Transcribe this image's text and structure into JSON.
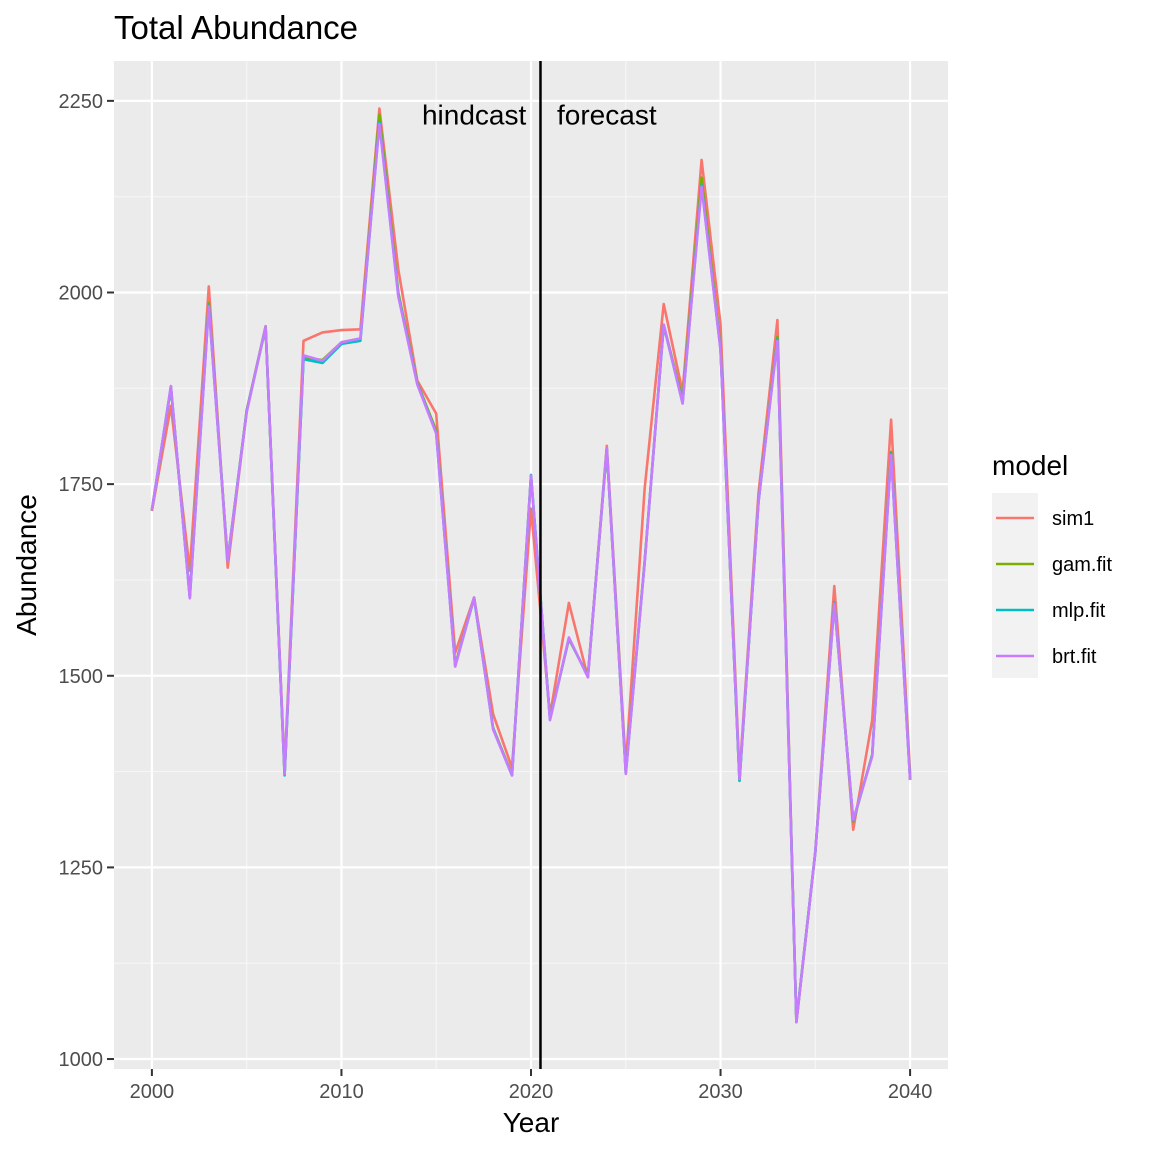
{
  "chart_data": {
    "type": "line",
    "title": "Total Abundance",
    "xlabel": "Year",
    "ylabel": "Abundance",
    "xlim": [
      1998,
      2042
    ],
    "ylim": [
      987,
      2302
    ],
    "x_ticks": [
      2000,
      2010,
      2020,
      2030,
      2040
    ],
    "y_ticks": [
      1000,
      1250,
      1500,
      1750,
      2000,
      2250
    ],
    "vline_x": 2020.5,
    "annotations": [
      {
        "text": "hindcast",
        "x": 2017,
        "y": 2232
      },
      {
        "text": "forecast",
        "x": 2024,
        "y": 2232
      }
    ],
    "grid": true,
    "legend": {
      "title": "model",
      "position": "right"
    },
    "x": [
      2000,
      2001,
      2002,
      2003,
      2004,
      2005,
      2006,
      2007,
      2008,
      2009,
      2010,
      2011,
      2012,
      2013,
      2014,
      2015,
      2016,
      2017,
      2018,
      2019,
      2020,
      2021,
      2022,
      2023,
      2024,
      2025,
      2026,
      2027,
      2028,
      2029,
      2030,
      2031,
      2032,
      2033,
      2034,
      2035,
      2036,
      2037,
      2038,
      2039,
      2040
    ],
    "series": [
      {
        "name": "sim1",
        "color": "#F8766D",
        "values": [
          1715,
          1852,
          1637,
          2008,
          1641,
          1846,
          1956,
          1377,
          1937,
          1948,
          1951,
          1952,
          2240,
          2030,
          1885,
          1842,
          1530,
          1602,
          1450,
          1380,
          1718,
          1448,
          1595,
          1498,
          1800,
          1383,
          1745,
          1985,
          1870,
          2173,
          1959,
          1370,
          1738,
          1964,
          1048,
          1270,
          1617,
          1299,
          1442,
          1834,
          1372
        ]
      },
      {
        "name": "gam.fit",
        "color": "#7CAE00",
        "values": [
          1716,
          1876,
          1604,
          1986,
          1651,
          1846,
          1954,
          1371,
          1915,
          1912,
          1935,
          1940,
          2232,
          2000,
          1882,
          1820,
          1514,
          1602,
          1432,
          1371,
          1760,
          1444,
          1548,
          1500,
          1795,
          1374,
          1650,
          1958,
          1860,
          2150,
          1928,
          1363,
          1728,
          1942,
          1050,
          1270,
          1596,
          1310,
          1397,
          1792,
          1366
        ]
      },
      {
        "name": "mlp.fit",
        "color": "#00BFC4",
        "values": [
          1716,
          1877,
          1602,
          1983,
          1650,
          1845,
          1955,
          1370,
          1913,
          1908,
          1933,
          1937,
          2222,
          1997,
          1881,
          1817,
          1513,
          1601,
          1431,
          1370,
          1762,
          1443,
          1549,
          1499,
          1796,
          1373,
          1649,
          1957,
          1856,
          2140,
          1926,
          1363,
          1727,
          1939,
          1049,
          1270,
          1595,
          1311,
          1396,
          1790,
          1364
        ]
      },
      {
        "name": "brt.fit",
        "color": "#C77CFF",
        "values": [
          1716,
          1878,
          1601,
          1982,
          1650,
          1844,
          1955,
          1372,
          1918,
          1911,
          1935,
          1940,
          2220,
          1995,
          1880,
          1816,
          1512,
          1602,
          1430,
          1370,
          1761,
          1442,
          1550,
          1498,
          1797,
          1372,
          1648,
          1958,
          1855,
          2138,
          1925,
          1365,
          1727,
          1937,
          1048,
          1270,
          1594,
          1312,
          1395,
          1788,
          1364
        ]
      }
    ]
  }
}
